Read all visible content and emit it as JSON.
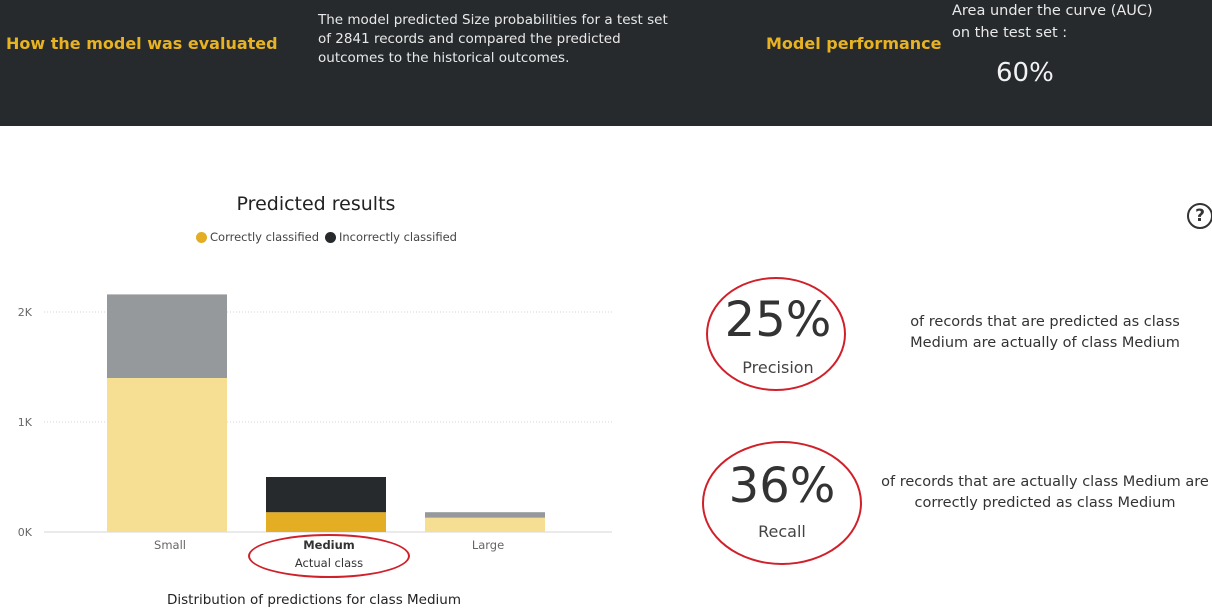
{
  "header": {
    "evaluated_title": "How the model was evaluated",
    "description_lines": [
      "The model predicted Size probabilities for a test set",
      "of 2841 records and compared the predicted",
      "outcomes to the historical outcomes."
    ],
    "performance_title": "Model performance",
    "auc_label_lines": [
      "Area under the curve (AUC)",
      "on the test set :"
    ],
    "auc_value": "60%"
  },
  "metrics": {
    "precision": {
      "value": "25%",
      "label": "Precision",
      "description_lines": [
        "of records that are predicted as class",
        "Medium are actually of class Medium"
      ]
    },
    "recall": {
      "value": "36%",
      "label": "Recall",
      "description_lines": [
        "of records that are actually class Medium are",
        "correctly predicted as class Medium"
      ]
    }
  },
  "help_icon": "help-icon",
  "colors": {
    "accent": "#e8b222",
    "header_bg": "#262a2d",
    "correct_selected": "#e3ae23",
    "correct_muted": "#f6df93",
    "incorrect_selected": "#262a2d",
    "incorrect_muted": "#96999c",
    "annotation_red": "#d0202a"
  },
  "chart_data": {
    "type": "bar",
    "stacked": true,
    "title": "Predicted results",
    "subtitle": "Distribution of predictions for class Medium",
    "xlabel": "Actual class",
    "ylabel": "",
    "categories": [
      "Small",
      "Medium",
      "Large"
    ],
    "highlighted_category": "Medium",
    "series": [
      {
        "name": "Correctly classified",
        "values": [
          1400,
          180,
          130
        ]
      },
      {
        "name": "Incorrectly classified",
        "values": [
          760,
          320,
          50
        ]
      }
    ],
    "ylim": [
      0,
      2200
    ],
    "yticks": [
      0,
      1000,
      2000
    ],
    "ytick_labels": [
      "0K",
      "1K",
      "2K"
    ],
    "grid": true,
    "legend": "top"
  }
}
